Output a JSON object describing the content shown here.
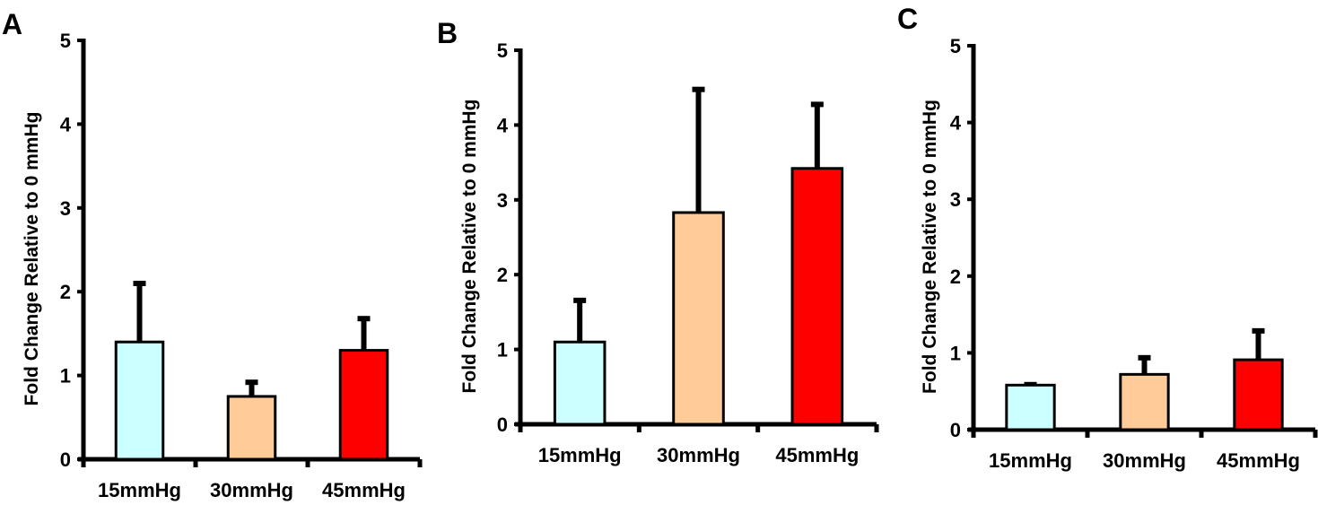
{
  "chart_data": [
    {
      "panel": "A",
      "type": "bar",
      "title": "",
      "xlabel": "",
      "ylabel": "Fold Change Relative to 0 mmHg",
      "ylim": [
        0,
        5
      ],
      "yticks": [
        "0",
        "1",
        "2",
        "3",
        "4",
        "5"
      ],
      "categories": [
        "15mmHg",
        "30mmHg",
        "45mmHg"
      ],
      "values": [
        1.4,
        0.75,
        1.3
      ],
      "error_upper": [
        0.72,
        0.19,
        0.4
      ],
      "colors": [
        "#ccffff",
        "#ffcc99",
        "#ff0000"
      ],
      "grid": false
    },
    {
      "panel": "B",
      "type": "bar",
      "title": "",
      "xlabel": "",
      "ylabel": "Fold Change Relative to 0 mmHg",
      "ylim": [
        0,
        5
      ],
      "yticks": [
        "0",
        "1",
        "2",
        "3",
        "4",
        "5"
      ],
      "categories": [
        "15mmHg",
        "30mmHg",
        "45mmHg"
      ],
      "values": [
        1.1,
        2.83,
        3.42
      ],
      "error_upper": [
        0.58,
        1.67,
        0.88
      ],
      "colors": [
        "#ccffff",
        "#ffcc99",
        "#ff0000"
      ],
      "grid": false
    },
    {
      "panel": "C",
      "type": "bar",
      "title": "",
      "xlabel": "",
      "ylabel": "Fold Change Relative to 0 mmHg",
      "ylim": [
        0,
        5
      ],
      "yticks": [
        "0",
        "1",
        "2",
        "3",
        "4",
        "5"
      ],
      "categories": [
        "15mmHg",
        "30mmHg",
        "45mmHg"
      ],
      "values": [
        0.58,
        0.72,
        0.91
      ],
      "error_upper": [
        0.03,
        0.24,
        0.4
      ],
      "colors": [
        "#ccffff",
        "#ffcc99",
        "#ff0000"
      ],
      "grid": false
    }
  ]
}
